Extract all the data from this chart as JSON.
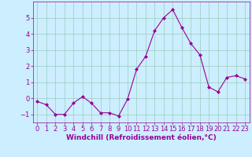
{
  "x": [
    0,
    1,
    2,
    3,
    4,
    5,
    6,
    7,
    8,
    9,
    10,
    11,
    12,
    13,
    14,
    15,
    16,
    17,
    18,
    19,
    20,
    21,
    22,
    23
  ],
  "y": [
    -0.2,
    -0.4,
    -1.0,
    -1.0,
    -0.3,
    0.1,
    -0.3,
    -0.9,
    -0.9,
    -1.1,
    -0.05,
    1.8,
    2.6,
    4.2,
    5.0,
    5.5,
    4.4,
    3.4,
    2.7,
    0.7,
    0.4,
    1.3,
    1.4,
    1.2
  ],
  "line_color": "#990099",
  "marker": "D",
  "marker_size": 2.0,
  "bg_color": "#cceeff",
  "grid_color": "#99ccbb",
  "xlabel": "Windchill (Refroidissement éolien,°C)",
  "ylim": [
    -1.5,
    6.0
  ],
  "xlim": [
    -0.5,
    23.5
  ],
  "yticks": [
    -1,
    0,
    1,
    2,
    3,
    4,
    5
  ],
  "xticks": [
    0,
    1,
    2,
    3,
    4,
    5,
    6,
    7,
    8,
    9,
    10,
    11,
    12,
    13,
    14,
    15,
    16,
    17,
    18,
    19,
    20,
    21,
    22,
    23
  ],
  "tick_label_size": 6.0,
  "xlabel_size": 6.5
}
